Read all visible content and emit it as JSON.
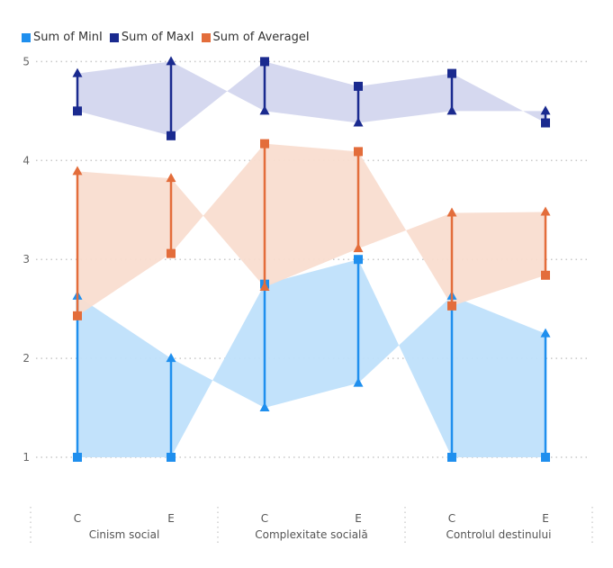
{
  "legend": {
    "entries": [
      {
        "label": "Sum of MinI",
        "color": "#1f8fee"
      },
      {
        "label": "Sum of MaxI",
        "color": "#1a2a8f"
      },
      {
        "label": "Sum of AverageI",
        "color": "#e36d3b"
      }
    ]
  },
  "chart_data": {
    "type": "line",
    "groups": [
      {
        "name": "Cinism social",
        "subcategories": [
          "C",
          "E"
        ]
      },
      {
        "name": "Complexitate socială",
        "subcategories": [
          "C",
          "E"
        ]
      },
      {
        "name": "Controlul destinului",
        "subcategories": [
          "C",
          "E"
        ]
      }
    ],
    "yticks": [
      1,
      2,
      3,
      4,
      5
    ],
    "ylim": [
      0.6,
      5.1
    ],
    "grid": true,
    "legend_position": "top-left",
    "series": [
      {
        "name": "Sum of MinI",
        "color": "#1f8fee",
        "band_color": "#bfe0fb",
        "start": [
          1.0,
          1.0,
          2.75,
          3.0,
          1.0,
          1.0
        ],
        "end": [
          2.63,
          2.0,
          1.5,
          1.75,
          2.63,
          2.25
        ]
      },
      {
        "name": "Sum of MaxI",
        "color": "#1a2a8f",
        "band_color": "#d3d6ee",
        "start": [
          4.5,
          4.25,
          5.0,
          4.75,
          4.88,
          4.38
        ],
        "end": [
          4.88,
          5.0,
          4.5,
          4.38,
          4.5,
          4.5
        ]
      },
      {
        "name": "Sum of AverageI",
        "color": "#e36d3b",
        "band_color": "#f9ddd0",
        "start": [
          2.43,
          3.06,
          4.17,
          4.09,
          2.53,
          2.84
        ],
        "end": [
          3.89,
          3.82,
          2.72,
          3.11,
          3.47,
          3.48
        ]
      }
    ]
  }
}
